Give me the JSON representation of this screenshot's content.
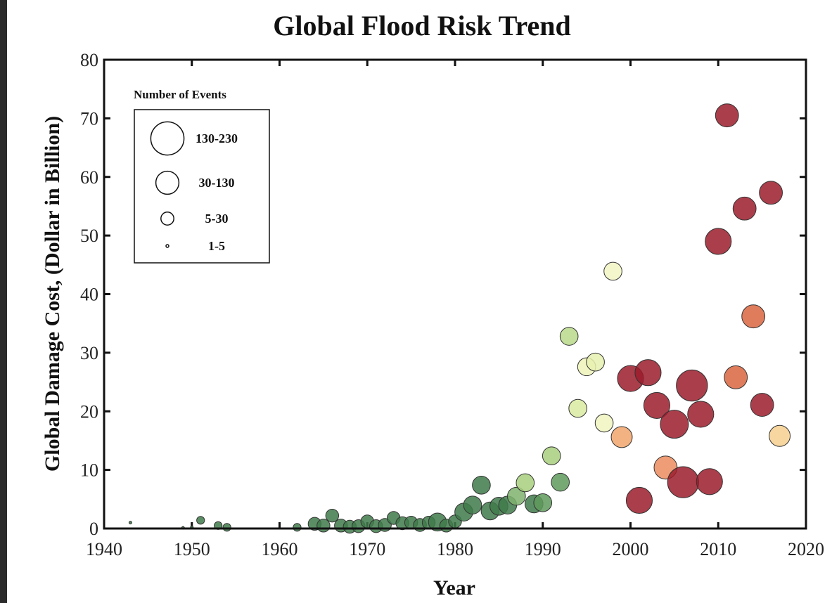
{
  "chart_data": {
    "type": "scatter",
    "title": "Global Flood Risk Trend",
    "xlabel": "Year",
    "ylabel": "Global Damage Cost, (Dollar in Billion)",
    "xlim": [
      1940,
      2020
    ],
    "ylim": [
      0,
      80
    ],
    "xticks": [
      "1940",
      "1950",
      "1960",
      "1970",
      "1980",
      "1990",
      "2000",
      "2010",
      "2020"
    ],
    "yticks": [
      "0",
      "10",
      "20",
      "30",
      "40",
      "50",
      "60",
      "70",
      "80"
    ],
    "grid": false,
    "size_legend": {
      "title": "Number of Events",
      "placement": "top-left",
      "entries": [
        {
          "label": "130-230",
          "size_class": 4
        },
        {
          "label": "30-130",
          "size_class": 3
        },
        {
          "label": "5-30",
          "size_class": 2
        },
        {
          "label": "1-5",
          "size_class": 1
        }
      ]
    },
    "points": [
      {
        "x": 1943,
        "y": 1.0,
        "size_class": 1,
        "color": "#3f7a4a"
      },
      {
        "x": 1949,
        "y": 0.1,
        "size_class": 1,
        "color": "#3f7a4a"
      },
      {
        "x": 1950,
        "y": 0.2,
        "size_class": 1,
        "color": "#3f7a4a"
      },
      {
        "x": 1951,
        "y": 1.4,
        "size_class": 1.5,
        "color": "#3f7a4a"
      },
      {
        "x": 1953,
        "y": 0.5,
        "size_class": 1.5,
        "color": "#3f7a4a"
      },
      {
        "x": 1954,
        "y": 0.2,
        "size_class": 1.5,
        "color": "#3f7a4a"
      },
      {
        "x": 1962,
        "y": 0.2,
        "size_class": 1.5,
        "color": "#3f7a4a"
      },
      {
        "x": 1964,
        "y": 0.8,
        "size_class": 2,
        "color": "#3f7a4a"
      },
      {
        "x": 1965,
        "y": 0.5,
        "size_class": 2,
        "color": "#3f7a4a"
      },
      {
        "x": 1966,
        "y": 2.2,
        "size_class": 2,
        "color": "#3f7a4a"
      },
      {
        "x": 1967,
        "y": 0.5,
        "size_class": 2,
        "color": "#3f7a4a"
      },
      {
        "x": 1968,
        "y": 0.3,
        "size_class": 2,
        "color": "#3f7a4a"
      },
      {
        "x": 1969,
        "y": 0.4,
        "size_class": 2,
        "color": "#3f7a4a"
      },
      {
        "x": 1970,
        "y": 1.2,
        "size_class": 2,
        "color": "#3f7a4a"
      },
      {
        "x": 1971,
        "y": 0.4,
        "size_class": 2,
        "color": "#3f7a4a"
      },
      {
        "x": 1972,
        "y": 0.6,
        "size_class": 2,
        "color": "#3f7a4a"
      },
      {
        "x": 1973,
        "y": 1.8,
        "size_class": 2,
        "color": "#3f7a4a"
      },
      {
        "x": 1974,
        "y": 0.9,
        "size_class": 2,
        "color": "#3f7a4a"
      },
      {
        "x": 1975,
        "y": 1.0,
        "size_class": 2,
        "color": "#3f7a4a"
      },
      {
        "x": 1976,
        "y": 0.6,
        "size_class": 2,
        "color": "#3f7a4a"
      },
      {
        "x": 1977,
        "y": 1.0,
        "size_class": 2,
        "color": "#3f7a4a"
      },
      {
        "x": 1978,
        "y": 1.1,
        "size_class": 2.5,
        "color": "#3f7a4a"
      },
      {
        "x": 1979,
        "y": 0.5,
        "size_class": 2,
        "color": "#3f7a4a"
      },
      {
        "x": 1980,
        "y": 1.2,
        "size_class": 2,
        "color": "#3f7a4a"
      },
      {
        "x": 1981,
        "y": 2.8,
        "size_class": 2.5,
        "color": "#3f7a4a"
      },
      {
        "x": 1982,
        "y": 4.0,
        "size_class": 2.5,
        "color": "#3f7a4a"
      },
      {
        "x": 1983,
        "y": 7.4,
        "size_class": 2.5,
        "color": "#3f7a4a"
      },
      {
        "x": 1984,
        "y": 3.0,
        "size_class": 2.5,
        "color": "#3f7a4a"
      },
      {
        "x": 1985,
        "y": 3.8,
        "size_class": 2.5,
        "color": "#3f7a4a"
      },
      {
        "x": 1986,
        "y": 4.0,
        "size_class": 2.5,
        "color": "#3f7a4a"
      },
      {
        "x": 1987,
        "y": 5.5,
        "size_class": 2.5,
        "color": "#7fb36e"
      },
      {
        "x": 1988,
        "y": 7.8,
        "size_class": 2.5,
        "color": "#a8cf7c"
      },
      {
        "x": 1989,
        "y": 4.2,
        "size_class": 2.5,
        "color": "#3f7a4a"
      },
      {
        "x": 1990,
        "y": 4.4,
        "size_class": 2.5,
        "color": "#5f9a5c"
      },
      {
        "x": 1991,
        "y": 12.4,
        "size_class": 2.5,
        "color": "#a8cf7c"
      },
      {
        "x": 1992,
        "y": 7.9,
        "size_class": 2.5,
        "color": "#5f9a5c"
      },
      {
        "x": 1993,
        "y": 32.8,
        "size_class": 2.5,
        "color": "#b9d98a"
      },
      {
        "x": 1994,
        "y": 20.5,
        "size_class": 2.5,
        "color": "#d9eaa0"
      },
      {
        "x": 1995,
        "y": 27.6,
        "size_class": 2.5,
        "color": "#eef3b8"
      },
      {
        "x": 1996,
        "y": 28.4,
        "size_class": 2.5,
        "color": "#e8f1b0"
      },
      {
        "x": 1997,
        "y": 18.0,
        "size_class": 2.5,
        "color": "#f0f5bf"
      },
      {
        "x": 1998,
        "y": 43.9,
        "size_class": 2.5,
        "color": "#f2f5c3"
      },
      {
        "x": 1999,
        "y": 15.6,
        "size_class": 2.8,
        "color": "#f0a56b"
      },
      {
        "x": 2000,
        "y": 25.6,
        "size_class": 3.3,
        "color": "#9b1c2c"
      },
      {
        "x": 2001,
        "y": 4.8,
        "size_class": 3.3,
        "color": "#9b1c2c"
      },
      {
        "x": 2002,
        "y": 26.6,
        "size_class": 3.3,
        "color": "#9b1c2c"
      },
      {
        "x": 2003,
        "y": 21.0,
        "size_class": 3.3,
        "color": "#9b1c2c"
      },
      {
        "x": 2004,
        "y": 10.4,
        "size_class": 3.0,
        "color": "#ec8c5e"
      },
      {
        "x": 2005,
        "y": 17.8,
        "size_class": 3.5,
        "color": "#9b1c2c"
      },
      {
        "x": 2006,
        "y": 7.9,
        "size_class": 3.8,
        "color": "#9b1c2c"
      },
      {
        "x": 2007,
        "y": 24.4,
        "size_class": 3.8,
        "color": "#9b1c2c"
      },
      {
        "x": 2008,
        "y": 19.5,
        "size_class": 3.3,
        "color": "#9b1c2c"
      },
      {
        "x": 2009,
        "y": 8.0,
        "size_class": 3.3,
        "color": "#9b1c2c"
      },
      {
        "x": 2010,
        "y": 49.0,
        "size_class": 3.3,
        "color": "#9b1c2c"
      },
      {
        "x": 2011,
        "y": 70.5,
        "size_class": 3.0,
        "color": "#9b1c2c"
      },
      {
        "x": 2012,
        "y": 25.8,
        "size_class": 3.0,
        "color": "#d9653f"
      },
      {
        "x": 2013,
        "y": 54.6,
        "size_class": 3.0,
        "color": "#9b1c2c"
      },
      {
        "x": 2014,
        "y": 36.2,
        "size_class": 3.0,
        "color": "#d9653f"
      },
      {
        "x": 2015,
        "y": 21.1,
        "size_class": 3.0,
        "color": "#9b1c2c"
      },
      {
        "x": 2016,
        "y": 57.3,
        "size_class": 3.0,
        "color": "#9b1c2c"
      },
      {
        "x": 2017,
        "y": 15.8,
        "size_class": 2.8,
        "color": "#f6cf8e"
      }
    ]
  }
}
